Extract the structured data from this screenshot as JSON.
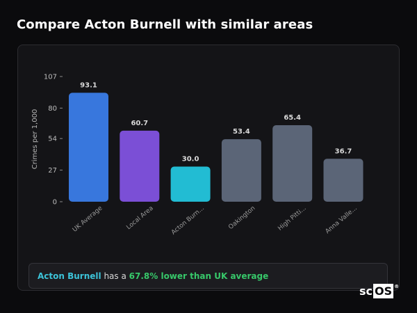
{
  "title": "Compare Acton Burnell with similar areas",
  "chart_data": {
    "type": "bar",
    "ylabel": "Crimes per 1,000",
    "ylim": [
      0,
      107
    ],
    "yticks": [
      0,
      27,
      54,
      80,
      107
    ],
    "categories": [
      "UK Average",
      "Local Area",
      "Acton Burn...",
      "Oakington",
      "High Pitti...",
      "Anna Valle..."
    ],
    "values": [
      93.1,
      60.7,
      30.0,
      53.4,
      65.4,
      36.7
    ],
    "value_labels": [
      "93.1",
      "60.7",
      "30.0",
      "53.4",
      "65.4",
      "36.7"
    ],
    "colors": [
      "#3877dd",
      "#7b4fd6",
      "#22bcd3",
      "#5b6577",
      "#5b6577",
      "#5b6577"
    ],
    "grid": false,
    "legend": "none"
  },
  "summary": {
    "place": "Acton Burnell",
    "connector": " has a ",
    "stat": "67.8% lower than UK average"
  },
  "brand": {
    "text_a": "sc",
    "text_b": "OS",
    "reg": "®"
  }
}
